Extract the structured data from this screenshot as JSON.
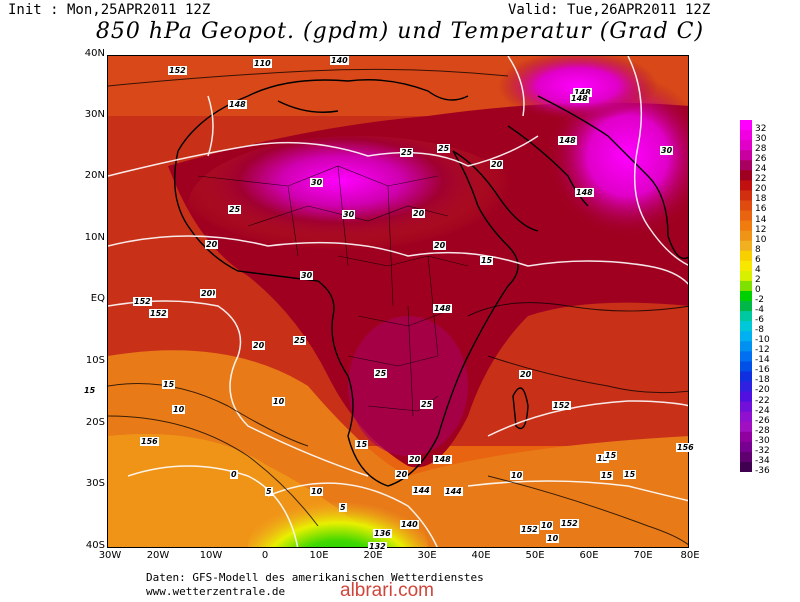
{
  "header": {
    "init": "Init : Mon,25APR2011 12Z",
    "valid": "Valid: Tue,26APR2011 12Z",
    "title": "850 hPa Geopot. (gpdm) und Temperatur (Grad C)"
  },
  "map": {
    "lat_labels": [
      "40N",
      "30N",
      "20N",
      "10N",
      "EQ",
      "10S",
      "20S",
      "30S",
      "40S"
    ],
    "lon_labels": [
      "30W",
      "20W",
      "10W",
      "0",
      "10E",
      "20E",
      "30E",
      "40E",
      "50E",
      "60E",
      "70E",
      "80E"
    ],
    "contour_labels": [
      "152",
      "140",
      "110",
      "148",
      "148",
      "25",
      "25",
      "30",
      "30",
      "25",
      "20",
      "15",
      "148",
      "20",
      "20",
      "152",
      "148",
      "152",
      "30",
      "25",
      "20",
      "20",
      "10",
      "15",
      "15",
      "156",
      "152",
      "20",
      "15",
      "10",
      "136",
      "132",
      "140",
      "144",
      "148",
      "152",
      "10",
      "15",
      "20",
      "25",
      "30",
      "148",
      "148",
      "20",
      "20",
      "10",
      "5",
      "144",
      "152",
      "10",
      "156",
      "15",
      "15",
      "10",
      "5",
      "0",
      "15",
      "20",
      "25"
    ]
  },
  "colorbar": {
    "labels": [
      "32",
      "30",
      "28",
      "26",
      "24",
      "22",
      "20",
      "18",
      "16",
      "14",
      "12",
      "10",
      "8",
      "6",
      "4",
      "2",
      "0",
      "-2",
      "-4",
      "-6",
      "-8",
      "-10",
      "-12",
      "-14",
      "-16",
      "-18",
      "-20",
      "-22",
      "-24",
      "-26",
      "-28",
      "-30",
      "-32",
      "-34",
      "-36"
    ],
    "colors": [
      "#ff00ff",
      "#f000e0",
      "#e000c8",
      "#c800a0",
      "#a80060",
      "#a00020",
      "#c01010",
      "#d03010",
      "#e04c10",
      "#e86410",
      "#f07c10",
      "#f09418",
      "#f0b020",
      "#f8d000",
      "#f8e800",
      "#d8f000",
      "#80e000",
      "#00d000",
      "#00b848",
      "#00c8a0",
      "#00c8d8",
      "#00b0f0",
      "#0090f0",
      "#0070f0",
      "#0050e8",
      "#1030e0",
      "#3020e0",
      "#5010e0",
      "#7010d8",
      "#9010d0",
      "#a010c0",
      "#9000a0",
      "#780090",
      "#600070",
      "#400050"
    ]
  },
  "footer": {
    "line1": "Daten: GFS-Modell des amerikanischen Wetterdienstes",
    "line2": "www.wetterzentrale.de",
    "watermark": "albrari.com"
  }
}
